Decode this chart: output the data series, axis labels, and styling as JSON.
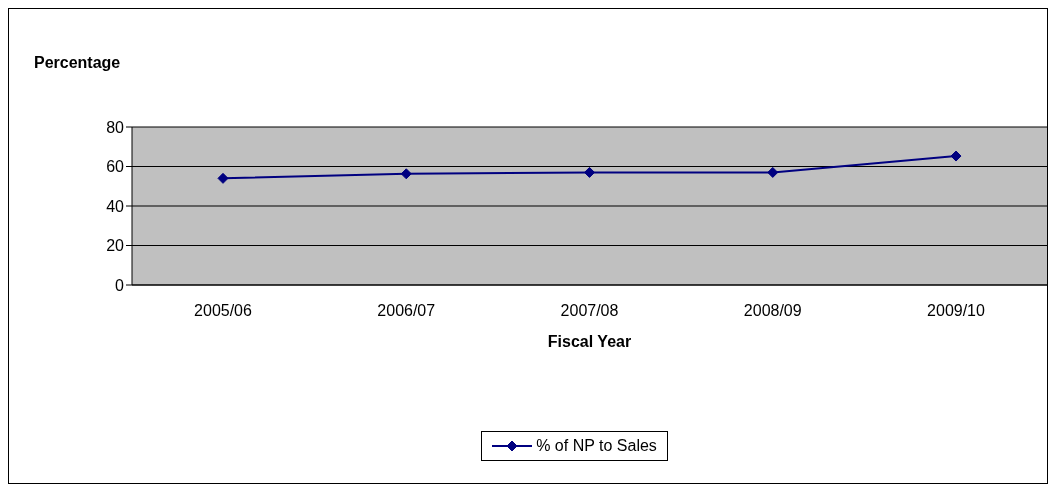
{
  "chart_data": {
    "type": "line",
    "ylabel": "Percentage",
    "xlabel": "Fiscal Year",
    "categories": [
      "2005/06",
      "2006/07",
      "2007/08",
      "2008/09",
      "2009/10"
    ],
    "series": [
      {
        "name": "% of NP to Sales",
        "color": "#000080",
        "values": [
          54,
          56.3,
          57,
          57,
          65.3
        ]
      }
    ],
    "ylim": [
      0,
      80
    ],
    "yticks": [
      0,
      20,
      40,
      60,
      80
    ],
    "grid": "y",
    "legend": "bottom",
    "marker": "diamond",
    "line_style": "solid"
  }
}
